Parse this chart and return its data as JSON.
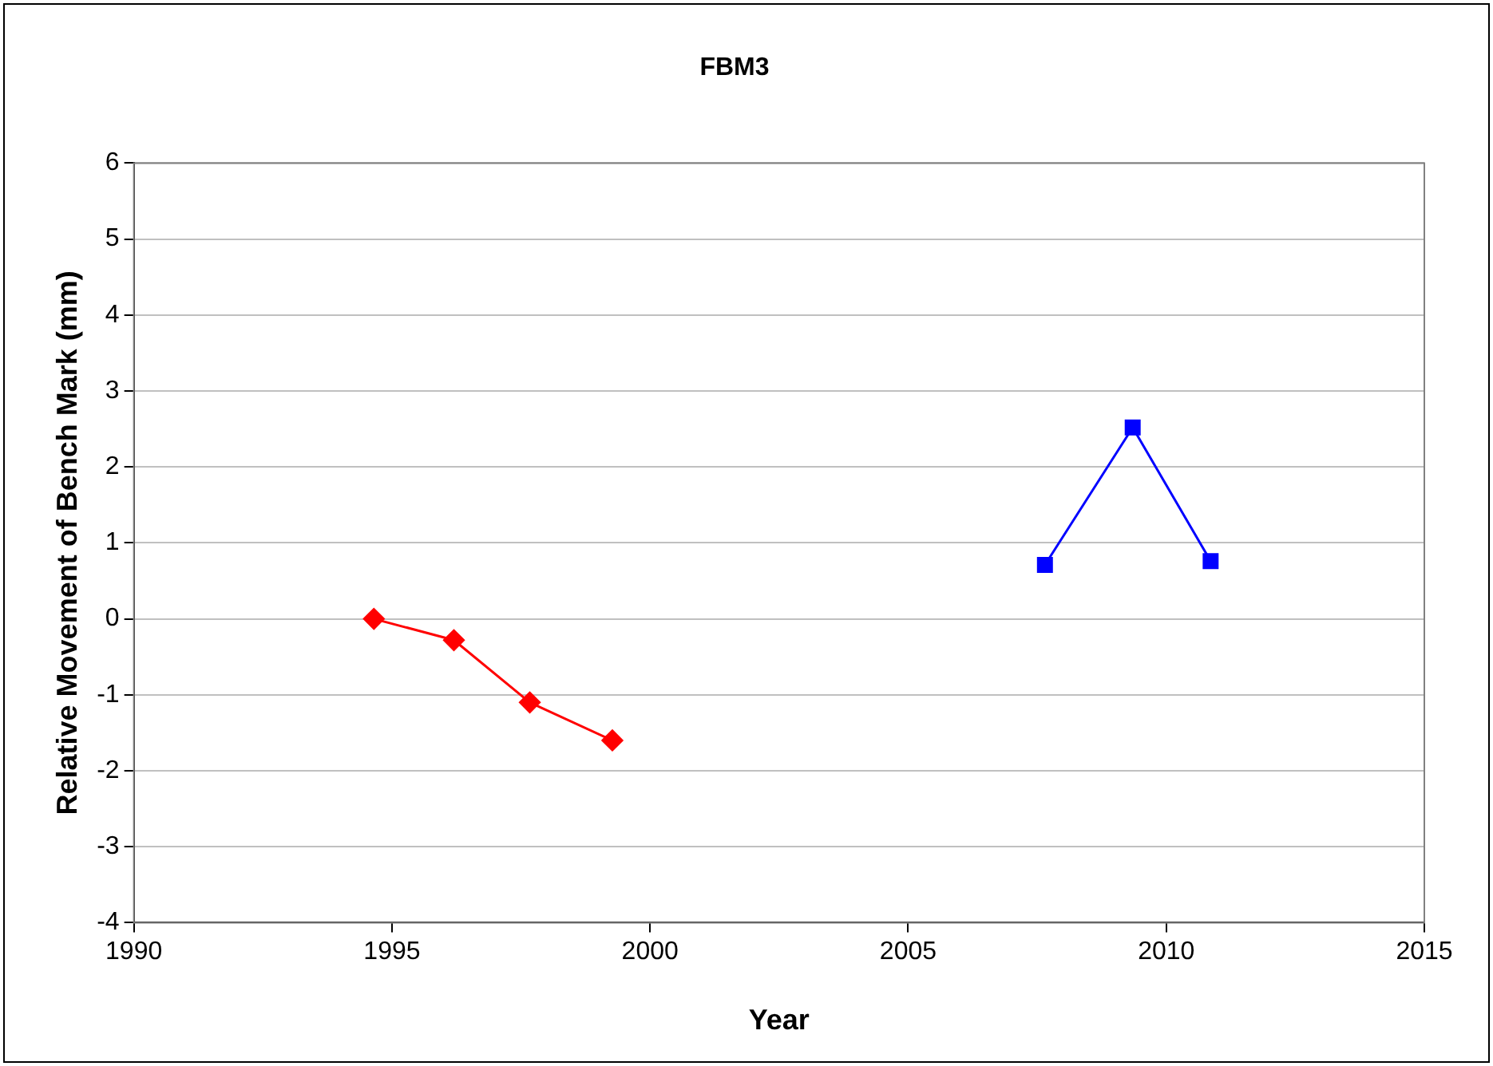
{
  "chart_data": {
    "type": "line",
    "title": "FBM3",
    "xlabel": "Year",
    "ylabel": "Relative Movement of Bench Mark (mm)",
    "xlim": [
      1990,
      2015
    ],
    "xticks": [
      1990,
      1995,
      2000,
      2005,
      2010,
      2015
    ],
    "ylim": [
      -4,
      6
    ],
    "yticks": [
      -4,
      -3,
      -2,
      -1,
      0,
      1,
      2,
      3,
      4,
      5,
      6
    ],
    "grid": "y",
    "legend": false,
    "line_style": "solid",
    "series": [
      {
        "color": "#ff0000",
        "marker": "diamond",
        "x": [
          1994.65,
          1996.2,
          1997.67,
          1999.27
        ],
        "values": [
          0,
          -0.28,
          -1.1,
          -1.6
        ]
      },
      {
        "color": "#0000ff",
        "marker": "square",
        "x": [
          2007.65,
          2009.35,
          2010.86
        ],
        "values": [
          0.71,
          2.52,
          0.76
        ]
      }
    ]
  }
}
